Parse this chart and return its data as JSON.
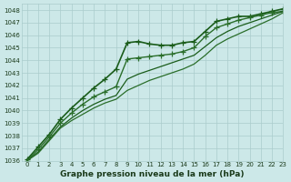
{
  "xlabel": "Graphe pression niveau de la mer (hPa)",
  "xlim": [
    -0.5,
    23
  ],
  "ylim": [
    1036,
    1048.5
  ],
  "yticks": [
    1036,
    1037,
    1038,
    1039,
    1040,
    1041,
    1042,
    1043,
    1044,
    1045,
    1046,
    1047,
    1048
  ],
  "xticks": [
    0,
    1,
    2,
    3,
    4,
    5,
    6,
    7,
    8,
    9,
    10,
    11,
    12,
    13,
    14,
    15,
    16,
    17,
    18,
    19,
    20,
    21,
    22,
    23
  ],
  "bg_color": "#cce8e8",
  "grid_color": "#aacccc",
  "series": [
    {
      "x": [
        0,
        1,
        2,
        3,
        4,
        5,
        6,
        7,
        8,
        9,
        10,
        11,
        12,
        13,
        14,
        15,
        16,
        17,
        18,
        19,
        20,
        21,
        22,
        23
      ],
      "y": [
        1036.1,
        1037.1,
        1038.1,
        1039.3,
        1040.2,
        1041.0,
        1041.8,
        1042.5,
        1043.3,
        1045.4,
        1045.5,
        1045.3,
        1045.2,
        1045.2,
        1045.4,
        1045.5,
        1046.3,
        1047.1,
        1047.3,
        1047.5,
        1047.5,
        1047.7,
        1047.9,
        1048.1
      ],
      "marker": "+",
      "color": "#1a5c1a",
      "lw": 1.2,
      "ms": 5
    },
    {
      "x": [
        0,
        1,
        2,
        3,
        4,
        5,
        6,
        7,
        8,
        9,
        10,
        11,
        12,
        13,
        14,
        15,
        16,
        17,
        18,
        19,
        20,
        21,
        22,
        23
      ],
      "y": [
        1036.0,
        1036.9,
        1037.9,
        1039.0,
        1039.8,
        1040.5,
        1041.1,
        1041.5,
        1041.9,
        1044.1,
        1044.2,
        1044.3,
        1044.4,
        1044.5,
        1044.7,
        1045.0,
        1045.9,
        1046.6,
        1046.9,
        1047.2,
        1047.4,
        1047.6,
        1047.8,
        1047.9
      ],
      "marker": "+",
      "color": "#2a6e2a",
      "lw": 1.0,
      "ms": 4
    },
    {
      "x": [
        0,
        1,
        2,
        3,
        4,
        5,
        6,
        7,
        8,
        9,
        10,
        11,
        12,
        13,
        14,
        15,
        16,
        17,
        18,
        19,
        20,
        21,
        22,
        23
      ],
      "y": [
        1036.0,
        1036.7,
        1037.7,
        1038.7,
        1039.4,
        1040.0,
        1040.5,
        1040.9,
        1041.2,
        1042.5,
        1042.9,
        1043.2,
        1043.5,
        1043.8,
        1044.1,
        1044.4,
        1045.1,
        1045.8,
        1046.3,
        1046.7,
        1047.0,
        1047.3,
        1047.6,
        1047.9
      ],
      "marker": null,
      "color": "#1a5c1a",
      "lw": 0.9,
      "ms": 0
    },
    {
      "x": [
        0,
        1,
        2,
        3,
        4,
        5,
        6,
        7,
        8,
        9,
        10,
        11,
        12,
        13,
        14,
        15,
        16,
        17,
        18,
        19,
        20,
        21,
        22,
        23
      ],
      "y": [
        1036.0,
        1036.6,
        1037.6,
        1038.6,
        1039.2,
        1039.7,
        1040.2,
        1040.6,
        1040.9,
        1041.6,
        1042.0,
        1042.4,
        1042.7,
        1043.0,
        1043.3,
        1043.7,
        1044.4,
        1045.2,
        1045.7,
        1046.1,
        1046.5,
        1046.9,
        1047.3,
        1047.8
      ],
      "marker": null,
      "color": "#2a6e2a",
      "lw": 0.9,
      "ms": 0
    }
  ],
  "tick_fontsize": 5.0,
  "label_fontsize": 6.5,
  "label_color": "#1a3a1a",
  "tick_color": "#1a3a1a"
}
